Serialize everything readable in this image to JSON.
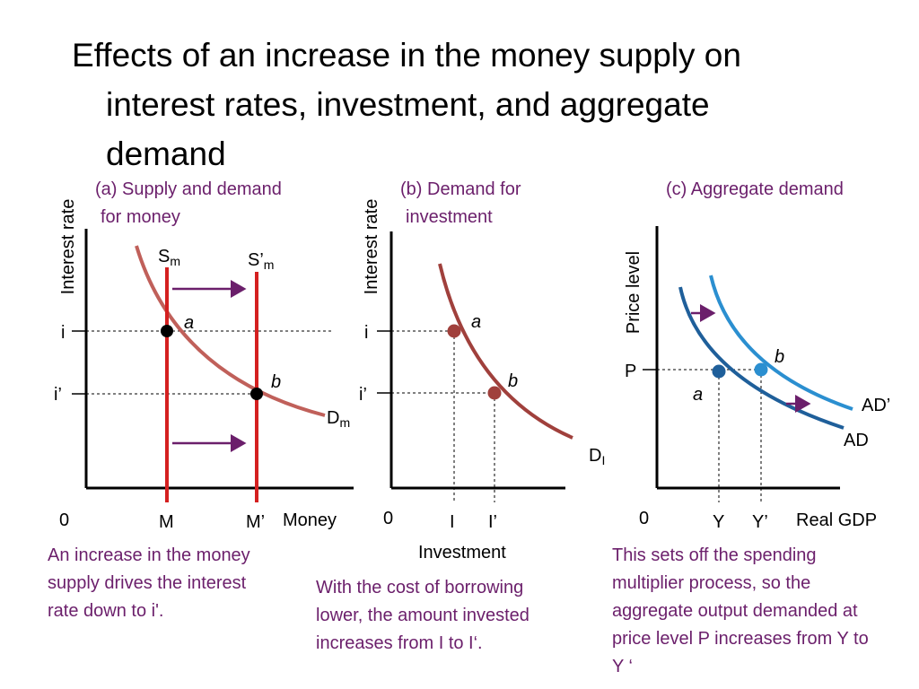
{
  "title": {
    "line1": "Effects of an increase in the money supply on",
    "line2": "interest rates, investment, and aggregate",
    "line3": "demand"
  },
  "colors": {
    "accent_text": "#6b1f6b",
    "money_supply": "#d42020",
    "money_demand": "#c0605a",
    "investment_demand": "#a0403c",
    "ad": "#1f5f9a",
    "ad_prime": "#2b8fd0",
    "shift_arrow": "#6b1f6b"
  },
  "panels": {
    "a": {
      "title_line1": "(a) Supply and demand",
      "title_line2": "for money",
      "y_axis_label": "Interest rate",
      "x_axis_label": "Money",
      "origin": "0",
      "i_label": "i",
      "i_prime_label": "i’",
      "m_label": "M",
      "m_prime_label": "M’",
      "supply_label": "S",
      "supply_prime_label": "S’",
      "supply_sub": "m",
      "demand_label": "D",
      "demand_sub": "m",
      "point_a": "a",
      "point_b": "b",
      "caption_line1": "An increase in the money",
      "caption_line2": "supply drives the interest",
      "caption_line3": "rate down to i'."
    },
    "b": {
      "title_line1": "(b) Demand for",
      "title_line2": "investment",
      "y_axis_label": "Interest rate",
      "x_axis_label": "Investment",
      "origin": "0",
      "i_label": "i",
      "i_prime_label": "i’",
      "inv_label": "I",
      "inv_prime_label": "I’",
      "demand_label": "D",
      "demand_sub": "I",
      "point_a": "a",
      "point_b": "b",
      "caption_line1": "With the cost of borrowing",
      "caption_line2": "lower, the amount invested",
      "caption_line3": "increases from I to I‘."
    },
    "c": {
      "title": "(c) Aggregate demand",
      "y_axis_label": "Price level",
      "x_axis_label": "Real GDP",
      "origin": "0",
      "p_label": "P",
      "y_label": "Y",
      "y_prime_label": "Y’",
      "ad_label": "AD",
      "ad_prime_label": "AD’",
      "point_a": "a",
      "point_b": "b",
      "caption_line1": "This sets off the spending",
      "caption_line2": "multiplier process, so the",
      "caption_line3": "aggregate output demanded at",
      "caption_line4": "price level P increases from Y to",
      "caption_line5": "Y ‘"
    }
  }
}
